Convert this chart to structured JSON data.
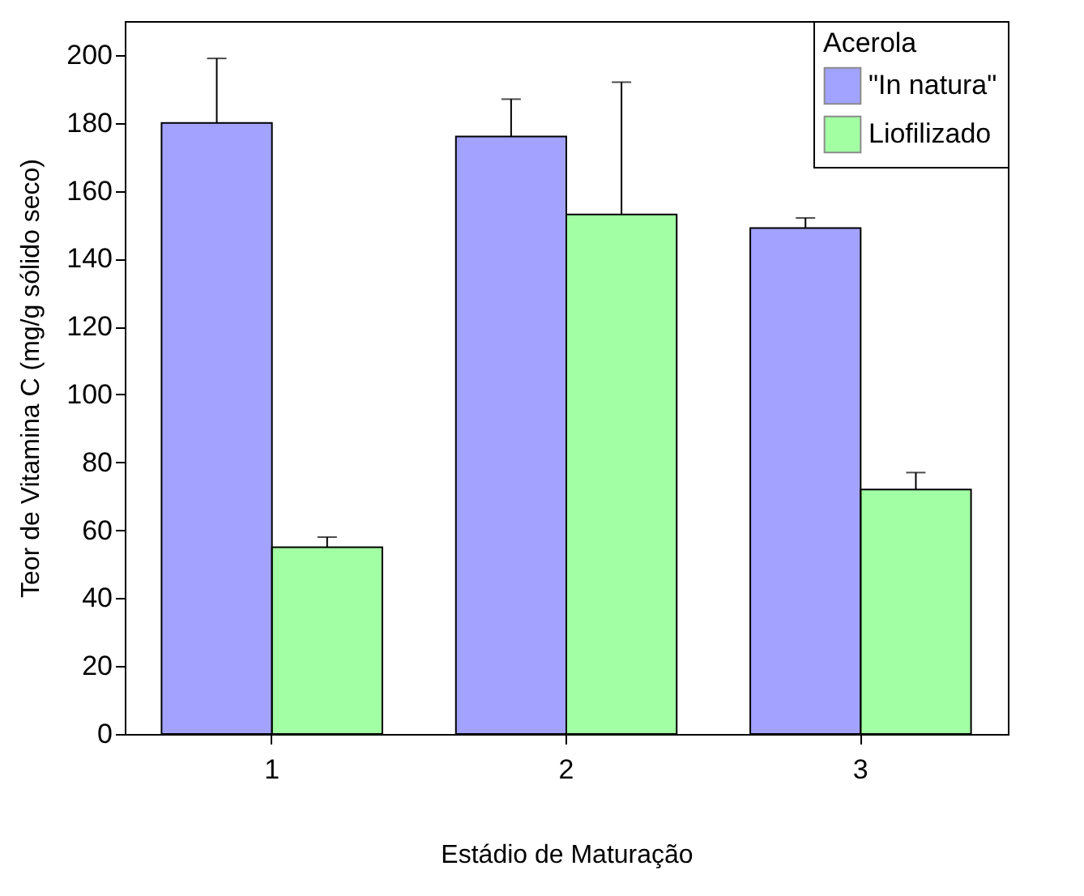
{
  "chart_data": {
    "type": "bar",
    "xlabel": "Estádio de Maturação",
    "ylabel": "Teor de Vitamina C (mg/g sólido seco)",
    "legend_title": "Acerola",
    "legend": "top right",
    "grid": false,
    "categories": [
      "1",
      "2",
      "3"
    ],
    "series": [
      {
        "name": "\"In natura\"",
        "color": "#3333ff",
        "values": [
          180,
          176,
          149
        ],
        "errors": [
          [
            180,
            199
          ],
          [
            176,
            187
          ],
          [
            149,
            152
          ]
        ]
      },
      {
        "name": "Liofilizado",
        "color": "#33ff33",
        "values": [
          55,
          153,
          72
        ],
        "errors": [
          [
            55,
            58
          ],
          [
            153,
            192
          ],
          [
            72,
            77
          ]
        ]
      }
    ],
    "ylim": [
      0,
      210
    ],
    "yticks": [
      0,
      20,
      40,
      60,
      80,
      100,
      120,
      140,
      160,
      180,
      200
    ]
  }
}
